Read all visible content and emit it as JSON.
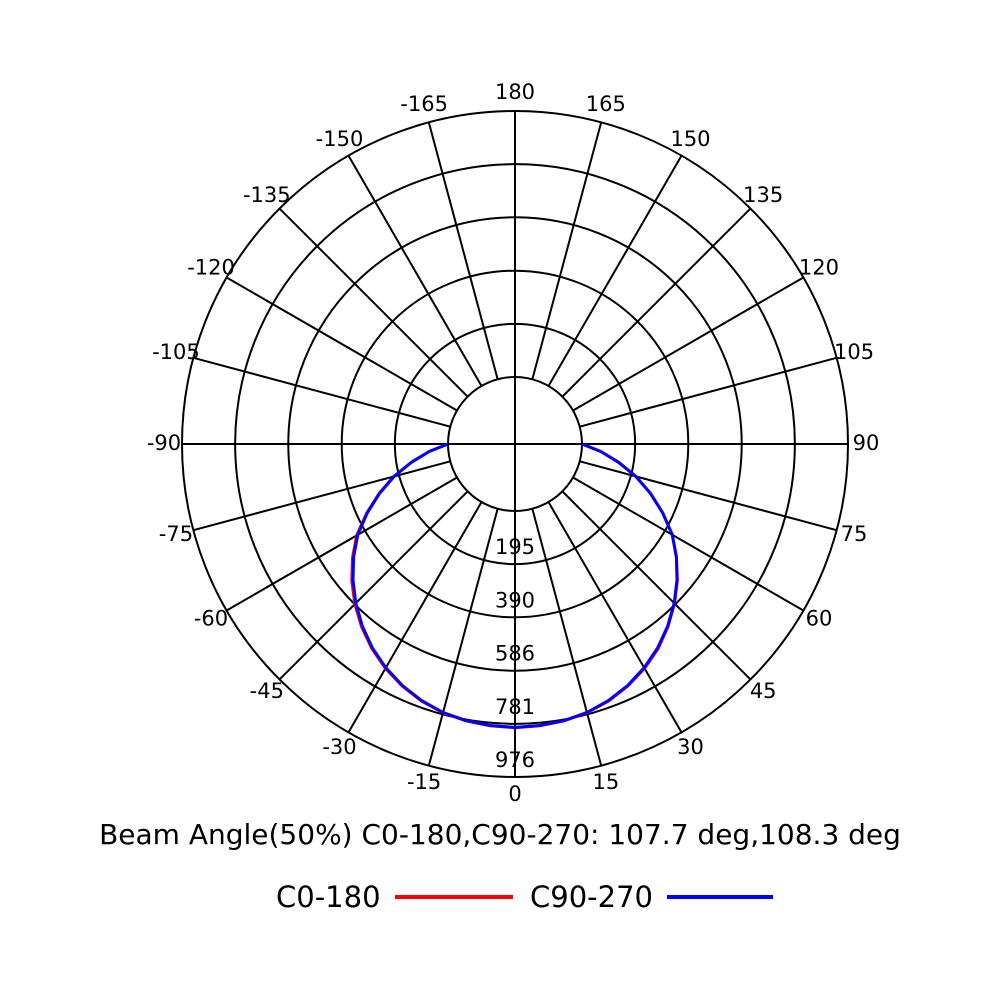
{
  "chart_data": {
    "type": "polar",
    "title": "Beam Angle(50%) C0-180,C90-270: 107.7 deg,108.3 deg",
    "radial_max": 976,
    "radial_ticks": [
      195,
      390,
      586,
      781,
      976
    ],
    "radial_tick_labels": [
      "195",
      "390",
      "586",
      "781",
      "976"
    ],
    "angle_ticks": [
      0,
      15,
      30,
      45,
      60,
      75,
      90,
      105,
      120,
      135,
      150,
      165,
      180,
      -165,
      -150,
      -135,
      -120,
      -105,
      -90,
      -75,
      -60,
      -45,
      -30,
      -15
    ],
    "angle_tick_labels": [
      "0",
      "15",
      "30",
      "45",
      "60",
      "75",
      "90",
      "105",
      "120",
      "135",
      "150",
      "165",
      "180",
      "-165",
      "-150",
      "-135",
      "-120",
      "-105",
      "-90",
      "-75",
      "-60",
      "-45",
      "-30",
      "-15"
    ],
    "angles": [
      -90,
      -85,
      -80,
      -75,
      -70,
      -65,
      -60,
      -55,
      -50,
      -45,
      -40,
      -35,
      -30,
      -25,
      -20,
      -15,
      -10,
      -5,
      0,
      5,
      10,
      15,
      20,
      25,
      30,
      35,
      40,
      45,
      50,
      55,
      60,
      65,
      70,
      75,
      80,
      85,
      90
    ],
    "series": [
      {
        "name": "C0-180",
        "color": "#ff0000",
        "values": [
          0,
          70,
          140,
          215,
          285,
          355,
          425,
          482,
          536,
          585,
          630,
          670,
          705,
          734,
          758,
          775,
          786,
          792,
          795,
          792,
          786,
          775,
          758,
          734,
          705,
          670,
          628,
          582,
          532,
          477,
          421,
          352,
          283,
          213,
          140,
          70,
          0
        ]
      },
      {
        "name": "C90-270",
        "color": "#0000ff",
        "values": [
          0,
          70,
          140,
          213,
          283,
          352,
          420,
          477,
          530,
          580,
          626,
          667,
          702,
          732,
          756,
          774,
          785,
          791,
          794,
          791,
          785,
          774,
          756,
          732,
          702,
          667,
          626,
          580,
          530,
          477,
          420,
          352,
          283,
          213,
          140,
          70,
          0
        ]
      }
    ],
    "legend": [
      "C0-180",
      "C90-270"
    ],
    "legend_position": "bottom",
    "grid": true
  }
}
